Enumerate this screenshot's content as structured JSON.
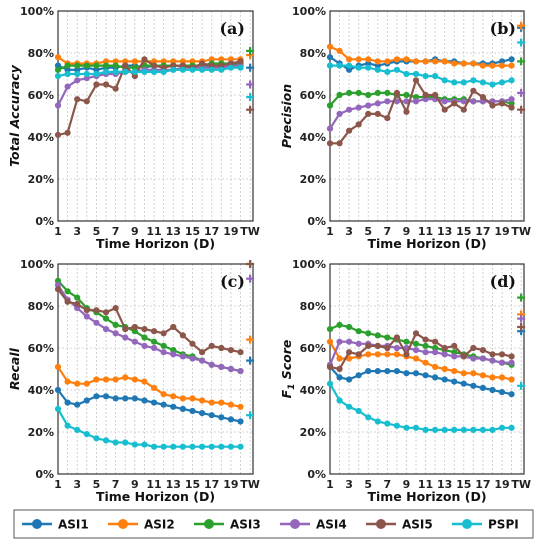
{
  "chart_data": [
    {
      "type": "line",
      "panel_label": "(a)",
      "ylabel": "Total Accuracy",
      "xlabel": "Time Horizon (D)",
      "x": [
        1,
        2,
        3,
        4,
        5,
        6,
        7,
        8,
        9,
        10,
        11,
        12,
        13,
        14,
        15,
        16,
        17,
        18,
        19,
        20
      ],
      "xticks": [
        "1",
        "3",
        "5",
        "7",
        "9",
        "11",
        "13",
        "15",
        "17",
        "19",
        "TW"
      ],
      "yticks": [
        "0%",
        "20%",
        "40%",
        "60%",
        "80%",
        "100%"
      ],
      "ylim": [
        0,
        100
      ],
      "series": [
        {
          "name": "ASI1",
          "color": "#1f77b4",
          "values": [
            74,
            72,
            72,
            73,
            72,
            73,
            73,
            74,
            74,
            73,
            74,
            74,
            74,
            74,
            74,
            74,
            74,
            74,
            74,
            74
          ],
          "tw": 73
        },
        {
          "name": "ASI2",
          "color": "#ff7f0e",
          "values": [
            78,
            75,
            75,
            75,
            75,
            76,
            76,
            76,
            76,
            76,
            76,
            76,
            76,
            76,
            76,
            76,
            77,
            77,
            77,
            77
          ],
          "tw": 79
        },
        {
          "name": "ASI3",
          "color": "#2ca02c",
          "values": [
            72,
            74,
            74,
            74,
            74,
            74,
            74,
            73,
            73,
            74,
            74,
            74,
            74,
            74,
            74,
            74,
            75,
            75,
            75,
            75
          ],
          "tw": 81
        },
        {
          "name": "ASI4",
          "color": "#9467bd",
          "values": [
            55,
            64,
            67,
            68,
            69,
            70,
            70,
            71,
            71,
            72,
            72,
            72,
            72,
            73,
            73,
            73,
            73,
            73,
            74,
            74
          ],
          "tw": 65
        },
        {
          "name": "ASI5",
          "color": "#8c564b",
          "values": [
            41,
            42,
            58,
            57,
            65,
            65,
            63,
            74,
            69,
            77,
            74,
            73,
            74,
            74,
            73,
            75,
            74,
            74,
            75,
            76
          ],
          "tw": 53
        },
        {
          "name": "PSPI",
          "color": "#17becf",
          "values": [
            69,
            70,
            70,
            70,
            70,
            71,
            71,
            71,
            71,
            71,
            71,
            71,
            72,
            72,
            72,
            72,
            72,
            72,
            73,
            73
          ],
          "tw": 59
        }
      ]
    },
    {
      "type": "line",
      "panel_label": "(b)",
      "ylabel": "Precision",
      "xlabel": "Time Horizon (D)",
      "x": [
        1,
        2,
        3,
        4,
        5,
        6,
        7,
        8,
        9,
        10,
        11,
        12,
        13,
        14,
        15,
        16,
        17,
        18,
        19,
        20
      ],
      "xticks": [
        "1",
        "3",
        "5",
        "7",
        "9",
        "11",
        "13",
        "15",
        "17",
        "19",
        "TW"
      ],
      "yticks": [
        "0%",
        "20%",
        "40%",
        "60%",
        "80%",
        "100%"
      ],
      "ylim": [
        0,
        100
      ],
      "series": [
        {
          "name": "ASI1",
          "color": "#1f77b4",
          "values": [
            78,
            75,
            72,
            74,
            75,
            74,
            75,
            76,
            76,
            76,
            76,
            77,
            76,
            76,
            75,
            75,
            75,
            75,
            76,
            77
          ],
          "tw": 92
        },
        {
          "name": "ASI2",
          "color": "#ff7f0e",
          "values": [
            83,
            81,
            77,
            77,
            77,
            76,
            76,
            77,
            77,
            76,
            76,
            76,
            76,
            75,
            75,
            75,
            74,
            74,
            74,
            74
          ],
          "tw": 93
        },
        {
          "name": "ASI3",
          "color": "#2ca02c",
          "values": [
            55,
            60,
            61,
            61,
            60,
            61,
            61,
            60,
            60,
            59,
            59,
            59,
            58,
            58,
            58,
            57,
            57,
            57,
            57,
            56
          ],
          "tw": 76
        },
        {
          "name": "ASI4",
          "color": "#9467bd",
          "values": [
            44,
            51,
            53,
            54,
            55,
            56,
            57,
            57,
            57,
            57,
            58,
            58,
            57,
            57,
            57,
            57,
            57,
            57,
            57,
            58
          ],
          "tw": 61
        },
        {
          "name": "ASI5",
          "color": "#8c564b",
          "values": [
            37,
            37,
            43,
            46,
            51,
            51,
            49,
            61,
            52,
            67,
            60,
            60,
            53,
            56,
            53,
            62,
            59,
            55,
            56,
            54
          ],
          "tw": 53
        },
        {
          "name": "PSPI",
          "color": "#17becf",
          "values": [
            74,
            74,
            74,
            73,
            73,
            72,
            71,
            72,
            70,
            70,
            69,
            69,
            67,
            66,
            66,
            67,
            66,
            65,
            66,
            67
          ],
          "tw": 85
        }
      ]
    },
    {
      "type": "line",
      "panel_label": "(c)",
      "ylabel": "Recall",
      "xlabel": "Time Horizon (D)",
      "x": [
        1,
        2,
        3,
        4,
        5,
        6,
        7,
        8,
        9,
        10,
        11,
        12,
        13,
        14,
        15,
        16,
        17,
        18,
        19,
        20
      ],
      "xticks": [
        "1",
        "3",
        "5",
        "7",
        "9",
        "11",
        "13",
        "15",
        "17",
        "19",
        "TW"
      ],
      "yticks": [
        "0%",
        "20%",
        "40%",
        "60%",
        "80%",
        "100%"
      ],
      "ylim": [
        0,
        100
      ],
      "series": [
        {
          "name": "ASI1",
          "color": "#1f77b4",
          "values": [
            40,
            34,
            33,
            35,
            37,
            37,
            36,
            36,
            36,
            35,
            34,
            33,
            32,
            31,
            30,
            29,
            28,
            27,
            26,
            25
          ],
          "tw": 54
        },
        {
          "name": "ASI2",
          "color": "#ff7f0e",
          "values": [
            51,
            44,
            43,
            43,
            45,
            45,
            45,
            46,
            45,
            44,
            41,
            38,
            37,
            36,
            36,
            35,
            34,
            34,
            33,
            32
          ],
          "tw": 64
        },
        {
          "name": "ASI3",
          "color": "#2ca02c",
          "values": [
            92,
            87,
            84,
            79,
            77,
            74,
            71,
            70,
            68,
            65,
            63,
            61,
            59,
            57,
            56,
            54,
            52,
            51,
            50,
            49
          ],
          "tw": 100
        },
        {
          "name": "ASI4",
          "color": "#9467bd",
          "values": [
            90,
            83,
            79,
            75,
            72,
            69,
            67,
            65,
            63,
            61,
            60,
            58,
            57,
            56,
            55,
            54,
            52,
            51,
            50,
            49
          ],
          "tw": 93
        },
        {
          "name": "ASI5",
          "color": "#8c564b",
          "values": [
            88,
            82,
            81,
            78,
            78,
            77,
            79,
            69,
            70,
            69,
            68,
            67,
            70,
            66,
            62,
            58,
            61,
            60,
            59,
            58
          ],
          "tw": 100
        },
        {
          "name": "PSPI",
          "color": "#17becf",
          "values": [
            31,
            23,
            21,
            19,
            17,
            16,
            15,
            15,
            14,
            14,
            13,
            13,
            13,
            13,
            13,
            13,
            13,
            13,
            13,
            13
          ],
          "tw": 28
        }
      ]
    },
    {
      "type": "line",
      "panel_label": "(d)",
      "ylabel": "F1 Score",
      "xlabel": "Time Horizon (D)",
      "x": [
        1,
        2,
        3,
        4,
        5,
        6,
        7,
        8,
        9,
        10,
        11,
        12,
        13,
        14,
        15,
        16,
        17,
        18,
        19,
        20
      ],
      "xticks": [
        "1",
        "3",
        "5",
        "7",
        "9",
        "11",
        "13",
        "15",
        "17",
        "19",
        "TW"
      ],
      "yticks": [
        "0%",
        "20%",
        "40%",
        "60%",
        "80%",
        "100%"
      ],
      "ylim": [
        0,
        100
      ],
      "series": [
        {
          "name": "ASI1",
          "color": "#1f77b4",
          "values": [
            51,
            46,
            45,
            47,
            49,
            49,
            49,
            49,
            48,
            48,
            47,
            46,
            45,
            44,
            43,
            42,
            41,
            40,
            39,
            38
          ],
          "tw": 68
        },
        {
          "name": "ASI2",
          "color": "#ff7f0e",
          "values": [
            63,
            55,
            55,
            56,
            57,
            57,
            57,
            57,
            56,
            55,
            53,
            51,
            50,
            49,
            48,
            48,
            47,
            46,
            46,
            45
          ],
          "tw": 76
        },
        {
          "name": "ASI3",
          "color": "#2ca02c",
          "values": [
            69,
            71,
            70,
            68,
            67,
            66,
            65,
            64,
            63,
            62,
            61,
            60,
            59,
            58,
            57,
            56,
            55,
            54,
            53,
            52
          ],
          "tw": 84
        },
        {
          "name": "ASI4",
          "color": "#9467bd",
          "values": [
            52,
            63,
            63,
            62,
            62,
            61,
            61,
            60,
            60,
            59,
            58,
            58,
            57,
            56,
            56,
            55,
            55,
            54,
            53,
            53
          ],
          "tw": 74
        },
        {
          "name": "ASI5",
          "color": "#8c564b",
          "values": [
            51,
            50,
            58,
            57,
            61,
            61,
            60,
            65,
            57,
            67,
            64,
            63,
            60,
            61,
            56,
            60,
            59,
            57,
            57,
            56
          ],
          "tw": 70
        },
        {
          "name": "PSPI",
          "color": "#17becf",
          "values": [
            43,
            35,
            32,
            30,
            27,
            25,
            24,
            23,
            22,
            22,
            21,
            21,
            21,
            21,
            21,
            21,
            21,
            21,
            22,
            22
          ],
          "tw": 42
        }
      ]
    }
  ],
  "legend": [
    {
      "name": "ASI1",
      "color": "#1f77b4"
    },
    {
      "name": "ASI2",
      "color": "#ff7f0e"
    },
    {
      "name": "ASI3",
      "color": "#2ca02c"
    },
    {
      "name": "ASI4",
      "color": "#9467bd"
    },
    {
      "name": "ASI5",
      "color": "#8c564b"
    },
    {
      "name": "PSPI",
      "color": "#17becf"
    }
  ]
}
